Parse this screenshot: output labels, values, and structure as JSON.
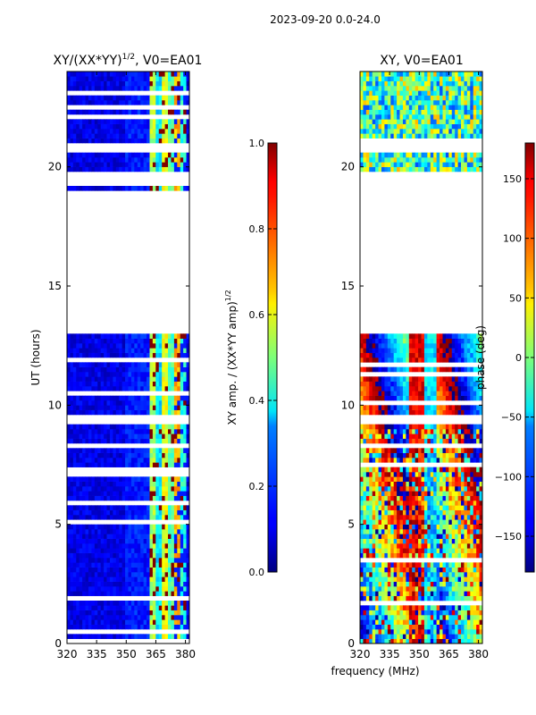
{
  "figure": {
    "suptitle": "2023-09-20 0.0-24.0",
    "shared_xlabel": "frequency (MHz)"
  },
  "chart_data": [
    {
      "type": "heatmap",
      "title_main": "XY/(XX*YY)",
      "title_exp": "1/2",
      "title_tail": ", V0=EA01",
      "xlabel": "",
      "ylabel": "UT (hours)",
      "xlim": [
        320,
        382
      ],
      "ylim": [
        0,
        24
      ],
      "xticks": [
        "320",
        "335",
        "350",
        "365",
        "380"
      ],
      "xtick_values": [
        320,
        335,
        350,
        365,
        380
      ],
      "yticks": [
        "0",
        "5",
        "10",
        "15",
        "20"
      ],
      "ytick_values": [
        0,
        5,
        10,
        15,
        20
      ],
      "colorbar": {
        "label_main": "XY amp. / (XX*YY amp)",
        "label_exp": "1/2",
        "range": [
          0.0,
          1.0
        ],
        "ticks": [
          "0.0",
          "0.2",
          "0.4",
          "0.6",
          "0.8",
          "1.0"
        ],
        "tick_values": [
          0.0,
          0.2,
          0.4,
          0.6,
          0.8,
          1.0
        ],
        "colormap": "jet"
      },
      "data_gaps_hours": [
        [
          0.0,
          0.0
        ],
        [
          9.6,
          9.1
        ],
        [
          13.0,
          19.0
        ],
        [
          20.5,
          21.0
        ]
      ],
      "bright_band_mhz": [
        362,
        381
      ],
      "base_value": 0.05,
      "band_value_range": [
        0.35,
        0.7
      ]
    },
    {
      "type": "heatmap",
      "title": "XY, V0=EA01",
      "xlabel": "",
      "ylabel": "",
      "xlim": [
        320,
        382
      ],
      "ylim": [
        0,
        24
      ],
      "xticks": [
        "320",
        "335",
        "350",
        "365",
        "380"
      ],
      "xtick_values": [
        320,
        335,
        350,
        365,
        380
      ],
      "yticks": [
        "0",
        "5",
        "10",
        "15",
        "20"
      ],
      "ytick_values": [
        0,
        5,
        10,
        15,
        20
      ],
      "colorbar": {
        "label": "phase (deg)",
        "range": [
          -180,
          180
        ],
        "ticks": [
          "−150",
          "−100",
          "−50",
          "0",
          "50",
          "100",
          "150"
        ],
        "tick_values": [
          -150,
          -100,
          -50,
          0,
          50,
          100,
          150
        ],
        "colormap": "jet"
      },
      "data_gaps_hours": [
        [
          9.6,
          9.1
        ],
        [
          13.0,
          19.0
        ],
        [
          20.5,
          21.0
        ]
      ],
      "phase_pattern": "frequency-dependent phase wraps, noisy below 9 h"
    }
  ]
}
